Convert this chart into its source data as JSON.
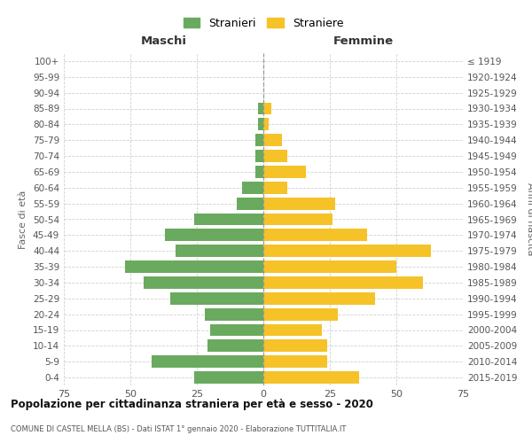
{
  "age_groups": [
    "0-4",
    "5-9",
    "10-14",
    "15-19",
    "20-24",
    "25-29",
    "30-34",
    "35-39",
    "40-44",
    "45-49",
    "50-54",
    "55-59",
    "60-64",
    "65-69",
    "70-74",
    "75-79",
    "80-84",
    "85-89",
    "90-94",
    "95-99",
    "100+"
  ],
  "birth_years": [
    "2015-2019",
    "2010-2014",
    "2005-2009",
    "2000-2004",
    "1995-1999",
    "1990-1994",
    "1985-1989",
    "1980-1984",
    "1975-1979",
    "1970-1974",
    "1965-1969",
    "1960-1964",
    "1955-1959",
    "1950-1954",
    "1945-1949",
    "1940-1944",
    "1935-1939",
    "1930-1934",
    "1925-1929",
    "1920-1924",
    "≤ 1919"
  ],
  "maschi": [
    26,
    42,
    21,
    20,
    22,
    35,
    45,
    52,
    33,
    37,
    26,
    10,
    8,
    3,
    3,
    3,
    2,
    2,
    0,
    0,
    0
  ],
  "femmine": [
    36,
    24,
    24,
    22,
    28,
    42,
    60,
    50,
    63,
    39,
    26,
    27,
    9,
    16,
    9,
    7,
    2,
    3,
    0,
    0,
    0
  ],
  "male_color": "#6aaa5e",
  "female_color": "#f5c228",
  "background_color": "#ffffff",
  "grid_color": "#cccccc",
  "title": "Popolazione per cittadinanza straniera per età e sesso - 2020",
  "subtitle": "COMUNE DI CASTEL MELLA (BS) - Dati ISTAT 1° gennaio 2020 - Elaborazione TUTTITALIA.IT",
  "xlabel_left": "Maschi",
  "xlabel_right": "Femmine",
  "ylabel_left": "Fasce di età",
  "ylabel_right": "Anni di nascita",
  "legend_male": "Stranieri",
  "legend_female": "Straniere",
  "xlim": 75
}
